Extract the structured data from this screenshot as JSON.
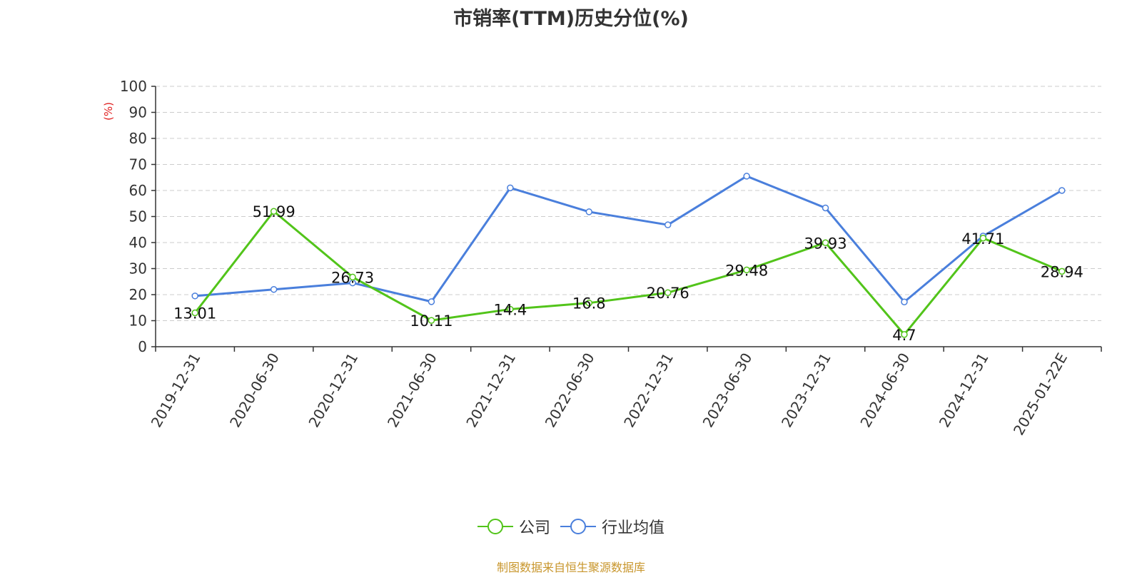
{
  "chart_data": {
    "type": "line",
    "title": "市销率(TTM)历史分位(%)",
    "ylabel": "(%)",
    "ylim": [
      0,
      100
    ],
    "yticks": [
      0,
      10,
      20,
      30,
      40,
      50,
      60,
      70,
      80,
      90,
      100
    ],
    "categories": [
      "2019-12-31",
      "2020-06-30",
      "2020-12-31",
      "2021-06-30",
      "2021-12-31",
      "2022-06-30",
      "2022-12-31",
      "2023-06-30",
      "2023-12-31",
      "2024-06-30",
      "2024-12-31",
      "2025-01-22E"
    ],
    "series": [
      {
        "name": "公司",
        "color": "#52c41a",
        "values": [
          13.01,
          51.99,
          26.73,
          10.11,
          14.4,
          16.8,
          20.76,
          29.48,
          39.93,
          4.7,
          41.71,
          28.94
        ],
        "labels": [
          "13.01",
          "51.99",
          "26.73",
          "10.11",
          "14.4",
          "16.8",
          "20.76",
          "29.48",
          "39.93",
          "4.7",
          "41.71",
          "28.94"
        ]
      },
      {
        "name": "行业均值",
        "color": "#4a7fdc",
        "values": [
          19.5,
          22,
          24.5,
          17.3,
          61,
          51.8,
          46.8,
          65.5,
          53.3,
          17.2,
          42.5,
          60
        ]
      }
    ],
    "grid": true,
    "legend_position": "bottom-center"
  },
  "footer": {
    "source": "制图数据来自恒生聚源数据库"
  }
}
